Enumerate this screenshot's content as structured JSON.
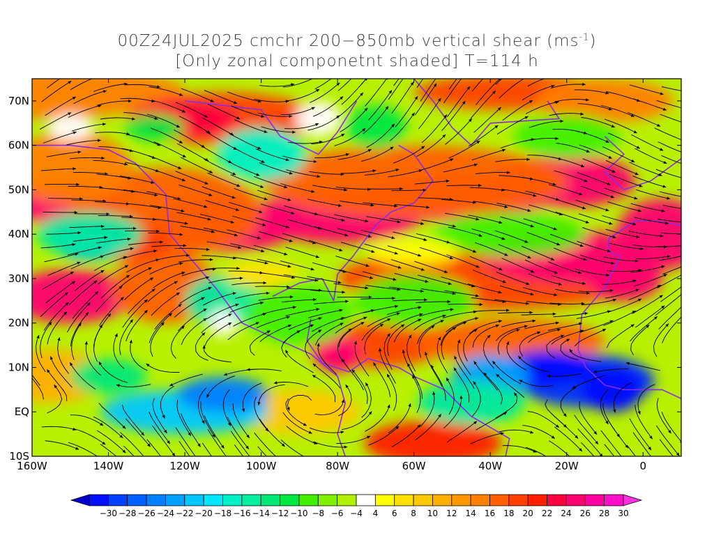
{
  "title": {
    "line1": "00Z24JUL2025 cmchr 200−850mb vertical shear (ms",
    "line1_sup": "-1",
    "line1_end": ")",
    "line2": "[Only zonal componetnt shaded] T=114 h"
  },
  "map": {
    "lon_range": [
      -160,
      10
    ],
    "lat_range": [
      -10,
      75
    ],
    "lat_ticks": [
      {
        "value": 70,
        "label": "70N"
      },
      {
        "value": 60,
        "label": "60N"
      },
      {
        "value": 50,
        "label": "50N"
      },
      {
        "value": 40,
        "label": "40N"
      },
      {
        "value": 30,
        "label": "30N"
      },
      {
        "value": 20,
        "label": "20N"
      },
      {
        "value": 10,
        "label": "10N"
      },
      {
        "value": 0,
        "label": "EQ"
      },
      {
        "value": -10,
        "label": "10S"
      }
    ],
    "lon_ticks": [
      {
        "value": -160,
        "label": "160W"
      },
      {
        "value": -140,
        "label": "140W"
      },
      {
        "value": -120,
        "label": "120W"
      },
      {
        "value": -100,
        "label": "100W"
      },
      {
        "value": -80,
        "label": "80W"
      },
      {
        "value": -60,
        "label": "60W"
      },
      {
        "value": -40,
        "label": "40W"
      },
      {
        "value": -20,
        "label": "20W"
      },
      {
        "value": 0,
        "label": "0"
      }
    ],
    "coastline_color": "#8a2be2",
    "streamline_color": "#000000"
  },
  "colorbar": {
    "colors": [
      "#0010ff",
      "#0040ff",
      "#0060ff",
      "#0080ff",
      "#00a0ff",
      "#00c8ff",
      "#00e8ff",
      "#00f0c8",
      "#00f0a0",
      "#00e878",
      "#00e840",
      "#40f000",
      "#80f000",
      "#b0f000",
      "#ffffff",
      "#ffff00",
      "#ffe000",
      "#ffc800",
      "#ffb000",
      "#ff9800",
      "#ff8000",
      "#ff6000",
      "#ff4000",
      "#ff2000",
      "#ff0040",
      "#ff0070",
      "#ff00a0",
      "#ff10c8"
    ],
    "left_arrow_color": "#0000c8",
    "right_arrow_color": "#ff30e0",
    "labels": [
      "-30",
      "-28",
      "-26",
      "-24",
      "-22",
      "-20",
      "-18",
      "-16",
      "-14",
      "-12",
      "-10",
      "-8",
      "-6",
      "-4",
      "4",
      "6",
      "8",
      "10",
      "12",
      "14",
      "16",
      "18",
      "20",
      "22",
      "24",
      "26",
      "28",
      "30"
    ]
  }
}
